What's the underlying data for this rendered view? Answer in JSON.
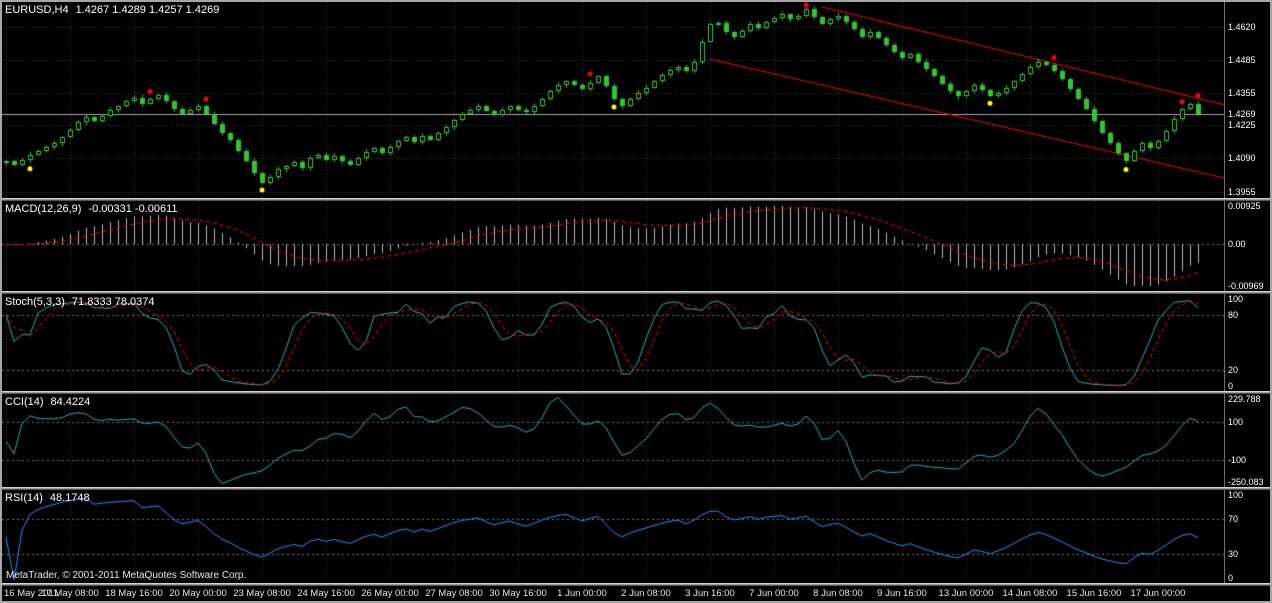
{
  "footer": {
    "copyright": "MetaTrader, © 2001-2011 MetaQuotes Software Corp."
  },
  "colors": {
    "background": "#000000",
    "text": "#ffffff",
    "grid": "#3a3a3a",
    "level": "#6e6e6e",
    "candle": "#2fc62f",
    "candle_bull_fill": "#000000",
    "candle_bear_fill": "#2fc62f",
    "macd_histogram": "#b9b9b9",
    "signal_line": "#ff0000",
    "stoch_main": "#20b2aa",
    "cci_line": "#20b2aa",
    "rsi_line": "#1e90ff",
    "trend": "#ff0000",
    "price_line": "#a9a9a9",
    "dot_red": "#ff0000",
    "dot_yellow": "#ffff00"
  },
  "chart_data": [
    {
      "type": "candlestick",
      "symbol": "EURUSD,H4",
      "ohlc": "1.4267 1.4289 1.4257 1.4269",
      "ylim": [
        1.393,
        1.472
      ],
      "bar_spacing": 8,
      "y_ticks": [
        {
          "v": 1.462,
          "t": "1.4620"
        },
        {
          "v": 1.4485,
          "t": "1.4485"
        },
        {
          "v": 1.4355,
          "t": "1.4355"
        },
        {
          "v": 1.4225,
          "t": "1.4225"
        },
        {
          "v": 1.409,
          "t": "1.4090"
        },
        {
          "v": 1.3955,
          "t": "1.3955"
        }
      ],
      "current_price": {
        "v": 1.4269,
        "t": "1.4269"
      },
      "x_ticks": [
        {
          "bar": 0,
          "text": "16 May 2011"
        },
        {
          "bar": 8,
          "text": "17 May 08:00"
        },
        {
          "bar": 16,
          "text": "18 May 16:00"
        },
        {
          "bar": 24,
          "text": "20 May 00:00"
        },
        {
          "bar": 32,
          "text": "23 May 08:00"
        },
        {
          "bar": 40,
          "text": "24 May 16:00"
        },
        {
          "bar": 48,
          "text": "26 May 00:00"
        },
        {
          "bar": 56,
          "text": "27 May 08:00"
        },
        {
          "bar": 64,
          "text": "30 May 16:00"
        },
        {
          "bar": 72,
          "text": "1 Jun 00:00"
        },
        {
          "bar": 80,
          "text": "2 Jun 08:00"
        },
        {
          "bar": 88,
          "text": "3 Jun 16:00"
        },
        {
          "bar": 96,
          "text": "7 Jun 00:00"
        },
        {
          "bar": 104,
          "text": "8 Jun 08:00"
        },
        {
          "bar": 112,
          "text": "9 Jun 16:00"
        },
        {
          "bar": 120,
          "text": "13 Jun 00:00"
        },
        {
          "bar": 128,
          "text": "14 Jun 08:00"
        },
        {
          "bar": 136,
          "text": "15 Jun 16:00"
        },
        {
          "bar": 144,
          "text": "17 Jun 00:00"
        }
      ],
      "closes": [
        1.4078,
        1.4065,
        1.4082,
        1.4105,
        1.412,
        1.4135,
        1.415,
        1.4175,
        1.4205,
        1.4235,
        1.4255,
        1.424,
        1.4262,
        1.4285,
        1.43,
        1.432,
        1.4335,
        1.431,
        1.433,
        1.4345,
        1.432,
        1.429,
        1.427,
        1.4285,
        1.43,
        1.427,
        1.423,
        1.419,
        1.4165,
        1.412,
        1.408,
        1.403,
        1.399,
        1.4015,
        1.4045,
        1.406,
        1.4075,
        1.405,
        1.409,
        1.4105,
        1.4085,
        1.41,
        1.408,
        1.4065,
        1.409,
        1.4115,
        1.413,
        1.411,
        1.4135,
        1.416,
        1.4175,
        1.4155,
        1.418,
        1.4165,
        1.419,
        1.4215,
        1.4245,
        1.427,
        1.4285,
        1.43,
        1.428,
        1.4265,
        1.4285,
        1.43,
        1.4285,
        1.4275,
        1.43,
        1.433,
        1.436,
        1.4385,
        1.44,
        1.4385,
        1.437,
        1.4395,
        1.442,
        1.438,
        1.433,
        1.43,
        1.433,
        1.4355,
        1.4375,
        1.44,
        1.4425,
        1.4445,
        1.446,
        1.444,
        1.448,
        1.456,
        1.463,
        1.4635,
        1.46,
        1.458,
        1.4605,
        1.463,
        1.4615,
        1.464,
        1.4655,
        1.467,
        1.465,
        1.4665,
        1.469,
        1.466,
        1.463,
        1.465,
        1.4665,
        1.464,
        1.461,
        1.458,
        1.46,
        1.4575,
        1.4545,
        1.452,
        1.4495,
        1.451,
        1.448,
        1.445,
        1.442,
        1.439,
        1.436,
        1.434,
        1.436,
        1.4385,
        1.4365,
        1.434,
        1.4355,
        1.4375,
        1.44,
        1.443,
        1.446,
        1.448,
        1.4465,
        1.444,
        1.441,
        1.437,
        1.433,
        1.429,
        1.424,
        1.419,
        1.415,
        1.411,
        1.408,
        1.412,
        1.415,
        1.413,
        1.416,
        1.42,
        1.425,
        1.429,
        1.431,
        1.4269
      ],
      "signals": {
        "red": [
          18,
          25,
          73,
          100,
          131,
          147,
          149
        ],
        "yellow": [
          3,
          32,
          76,
          123,
          140
        ]
      },
      "trendlines": [
        {
          "b1": 102,
          "p1": 1.47,
          "b2": 153,
          "p2": 1.43
        },
        {
          "b1": 88,
          "p1": 1.449,
          "b2": 153,
          "p2": 1.4005
        }
      ]
    },
    {
      "type": "macd",
      "name": "MACD(12,26,9)",
      "values": "-0.00331 -0.00611",
      "params": [
        12,
        26,
        9
      ],
      "y_ticks": [
        {
          "v": 0.00925,
          "t": "0.00925"
        },
        {
          "v": 0.0,
          "t": "0.00"
        },
        {
          "v": -0.00969,
          "t": "-0.00969"
        }
      ],
      "levels": [
        0
      ]
    },
    {
      "type": "stochastic",
      "name": "Stoch(5,3,3)",
      "values": "71.8333 78.0374",
      "params": [
        5,
        3,
        3
      ],
      "ylim": [
        0,
        100
      ],
      "y_ticks": [
        {
          "v": 100,
          "t": "100"
        },
        {
          "v": 80,
          "t": "80"
        },
        {
          "v": 20,
          "t": "20"
        },
        {
          "v": 0,
          "t": "0"
        }
      ],
      "levels": [
        80,
        20
      ]
    },
    {
      "type": "cci",
      "name": "CCI(14)",
      "values": "84.4224",
      "params": [
        14
      ],
      "y_ticks": [
        {
          "v": 229.788,
          "t": "229.788"
        },
        {
          "v": 100,
          "t": "100"
        },
        {
          "v": -100,
          "t": "-100"
        },
        {
          "v": -250.083,
          "t": "-250.083"
        }
      ],
      "levels": [
        100,
        -100
      ]
    },
    {
      "type": "rsi",
      "name": "RSI(14)",
      "values": "48.1748",
      "params": [
        14
      ],
      "ylim": [
        0,
        100
      ],
      "y_ticks": [
        {
          "v": 100,
          "t": "100"
        },
        {
          "v": 70,
          "t": "70"
        },
        {
          "v": 30,
          "t": "30"
        },
        {
          "v": 0,
          "t": "0"
        }
      ],
      "levels": [
        70,
        30
      ]
    }
  ]
}
